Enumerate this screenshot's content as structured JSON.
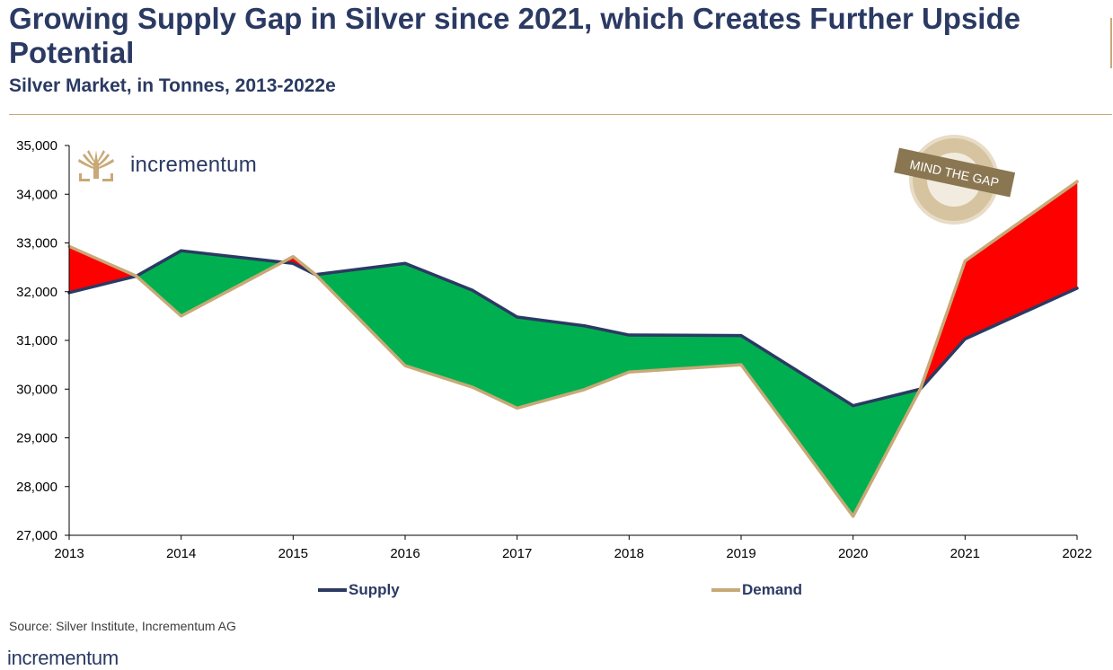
{
  "header": {
    "title": "Growing Supply Gap in Silver since 2021, which Creates Further Upside Potential",
    "subtitle": "Silver Market, in Tonnes, 2013-2022e"
  },
  "branding": {
    "logo_text": "incrementum",
    "footer_logo_text": "incrementum",
    "badge_text": "MIND THE GAP"
  },
  "source": "Source: Silver Institute, Incrementum AG",
  "colors": {
    "supply": "#2b3a63",
    "demand": "#c8a977",
    "surplus_fill": "#00b050",
    "deficit_fill": "#ff0000",
    "axis": "#000000",
    "text_dark": "#2b3a63"
  },
  "chart_data": {
    "type": "line",
    "title": "Silver Market, in Tonnes, 2013-2022e",
    "x_tick_labels": [
      "2013",
      "2014",
      "2015",
      "2016",
      "2017",
      "2018",
      "2019",
      "2020",
      "2021",
      "2022"
    ],
    "y_ticks": [
      27000,
      28000,
      29000,
      30000,
      31000,
      32000,
      33000,
      34000,
      35000
    ],
    "ylim": [
      27000,
      35000
    ],
    "grid": false,
    "legend_position": "bottom",
    "x": [
      2013,
      2013.6,
      2014,
      2015,
      2015.2,
      2016,
      2016.6,
      2017,
      2017.6,
      2018,
      2019,
      2020,
      2020.6,
      2021,
      2022
    ],
    "series": [
      {
        "name": "Supply",
        "color": "#2b3a63",
        "values": [
          31980,
          32320,
          32840,
          32580,
          32350,
          32580,
          32030,
          31480,
          31300,
          31110,
          31100,
          29660,
          30000,
          31030,
          32070
        ]
      },
      {
        "name": "Demand",
        "color": "#c8a977",
        "values": [
          32930,
          32320,
          31500,
          32720,
          32350,
          30480,
          30040,
          29610,
          29990,
          30350,
          30500,
          27390,
          30000,
          32630,
          34260
        ]
      }
    ],
    "fill_between": {
      "supply_above_demand": "#00b050",
      "demand_above_supply": "#ff0000"
    }
  }
}
